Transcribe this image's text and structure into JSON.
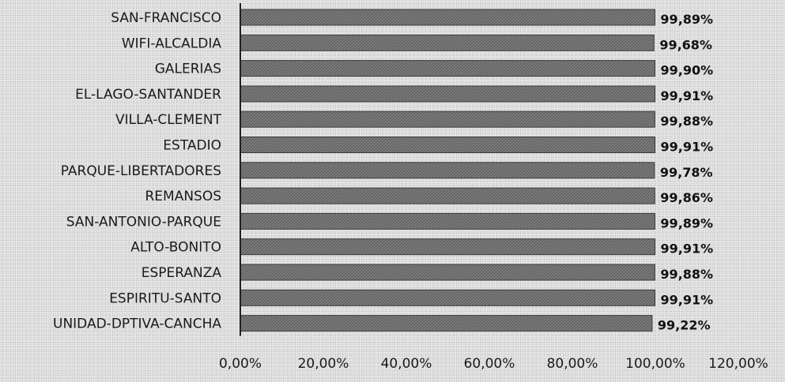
{
  "chart_data": {
    "type": "bar",
    "orientation": "horizontal",
    "categories": [
      "SAN-FRANCISCO",
      "WIFI-ALCALDIA",
      "GALERIAS",
      "EL-LAGO-SANTANDER",
      "VILLA-CLEMENT",
      "ESTADIO",
      "PARQUE-LIBERTADORES",
      "REMANSOS",
      "SAN-ANTONIO-PARQUE",
      "ALTO-BONITO",
      "ESPERANZA",
      "ESPIRITU-SANTO",
      "UNIDAD-DPTIVA-CANCHA"
    ],
    "values": [
      99.89,
      99.68,
      99.9,
      99.91,
      99.88,
      99.91,
      99.78,
      99.86,
      99.89,
      99.91,
      99.88,
      99.91,
      99.22
    ],
    "value_labels": [
      "99,89%",
      "99,68%",
      "99,90%",
      "99,91%",
      "99,88%",
      "99,91%",
      "99,78%",
      "99,86%",
      "99,89%",
      "99,91%",
      "99,88%",
      "99,91%",
      "99,22%"
    ],
    "xlim": [
      0,
      120
    ],
    "x_ticks": [
      0,
      20,
      40,
      60,
      80,
      100,
      120
    ],
    "x_tick_labels": [
      "0,00%",
      "20,00%",
      "40,00%",
      "60,00%",
      "80,00%",
      "100,00%",
      "120,00%"
    ],
    "title": "",
    "xlabel": "",
    "ylabel": "",
    "grid": false,
    "legend": "none",
    "bar_color": "#7d7d7d",
    "bar_edge_color": "#3a3a3a"
  }
}
